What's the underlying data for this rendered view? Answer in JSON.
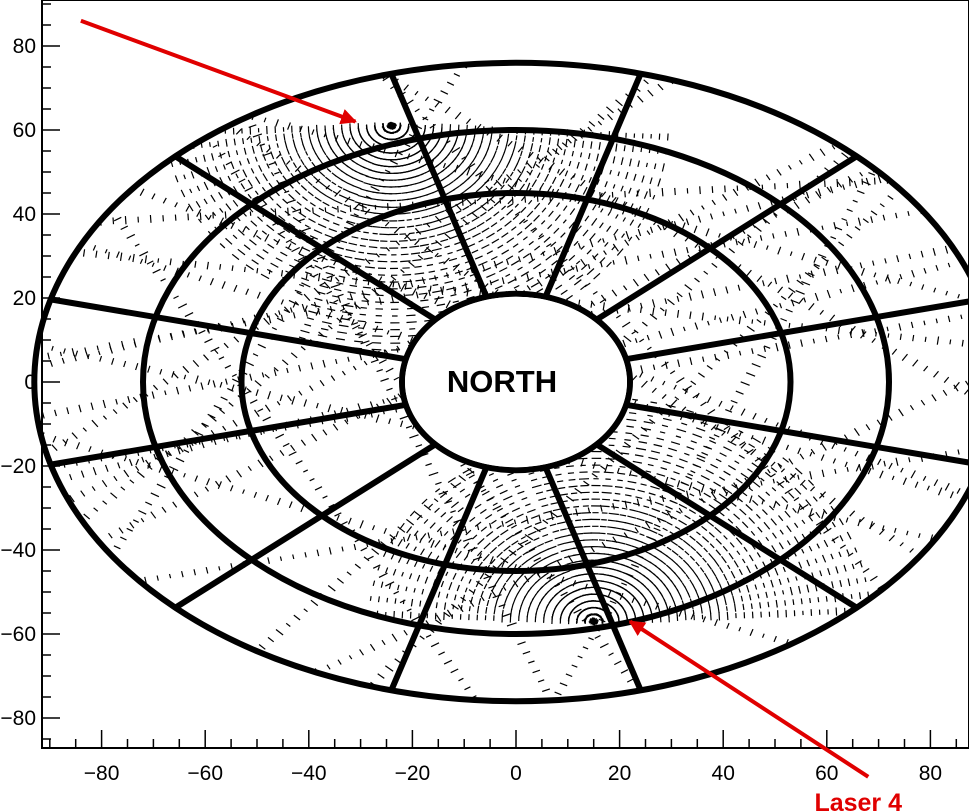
{
  "chart_data": {
    "type": "scatter",
    "title": "",
    "xlabel": "",
    "ylabel": "",
    "xlim": [
      -90,
      90
    ],
    "ylim": [
      -86,
      86
    ],
    "x_ticks": [
      -80,
      -60,
      -40,
      -20,
      0,
      20,
      40,
      60,
      80
    ],
    "y_ticks": [
      80,
      60,
      40,
      20,
      0,
      -20,
      -40,
      -60,
      -80
    ],
    "x_tick_labels": [
      "−80",
      "−60",
      "−40",
      "−20",
      "0",
      "20",
      "40",
      "60",
      "80"
    ],
    "y_tick_labels": [
      "80",
      "60",
      "40",
      "20",
      "0",
      "−20",
      "−40",
      "−60",
      "−80"
    ],
    "grid": false,
    "detector_rings": [
      {
        "rx": 22,
        "ry": 21
      },
      {
        "rx": 53,
        "ry": 45
      },
      {
        "rx": 72,
        "ry": 60
      },
      {
        "rx": 93,
        "ry": 76
      }
    ],
    "sector_count": 12,
    "center_label": "NORTH",
    "annotations": [
      {
        "label": "",
        "arrow_from": [
          -84,
          86
        ],
        "arrow_to": [
          -31,
          62
        ],
        "color": "#e00000"
      },
      {
        "label": "Laser 4",
        "arrow_from": [
          68,
          -94
        ],
        "arrow_to": [
          22,
          -57
        ],
        "color": "#e00000"
      }
    ]
  }
}
